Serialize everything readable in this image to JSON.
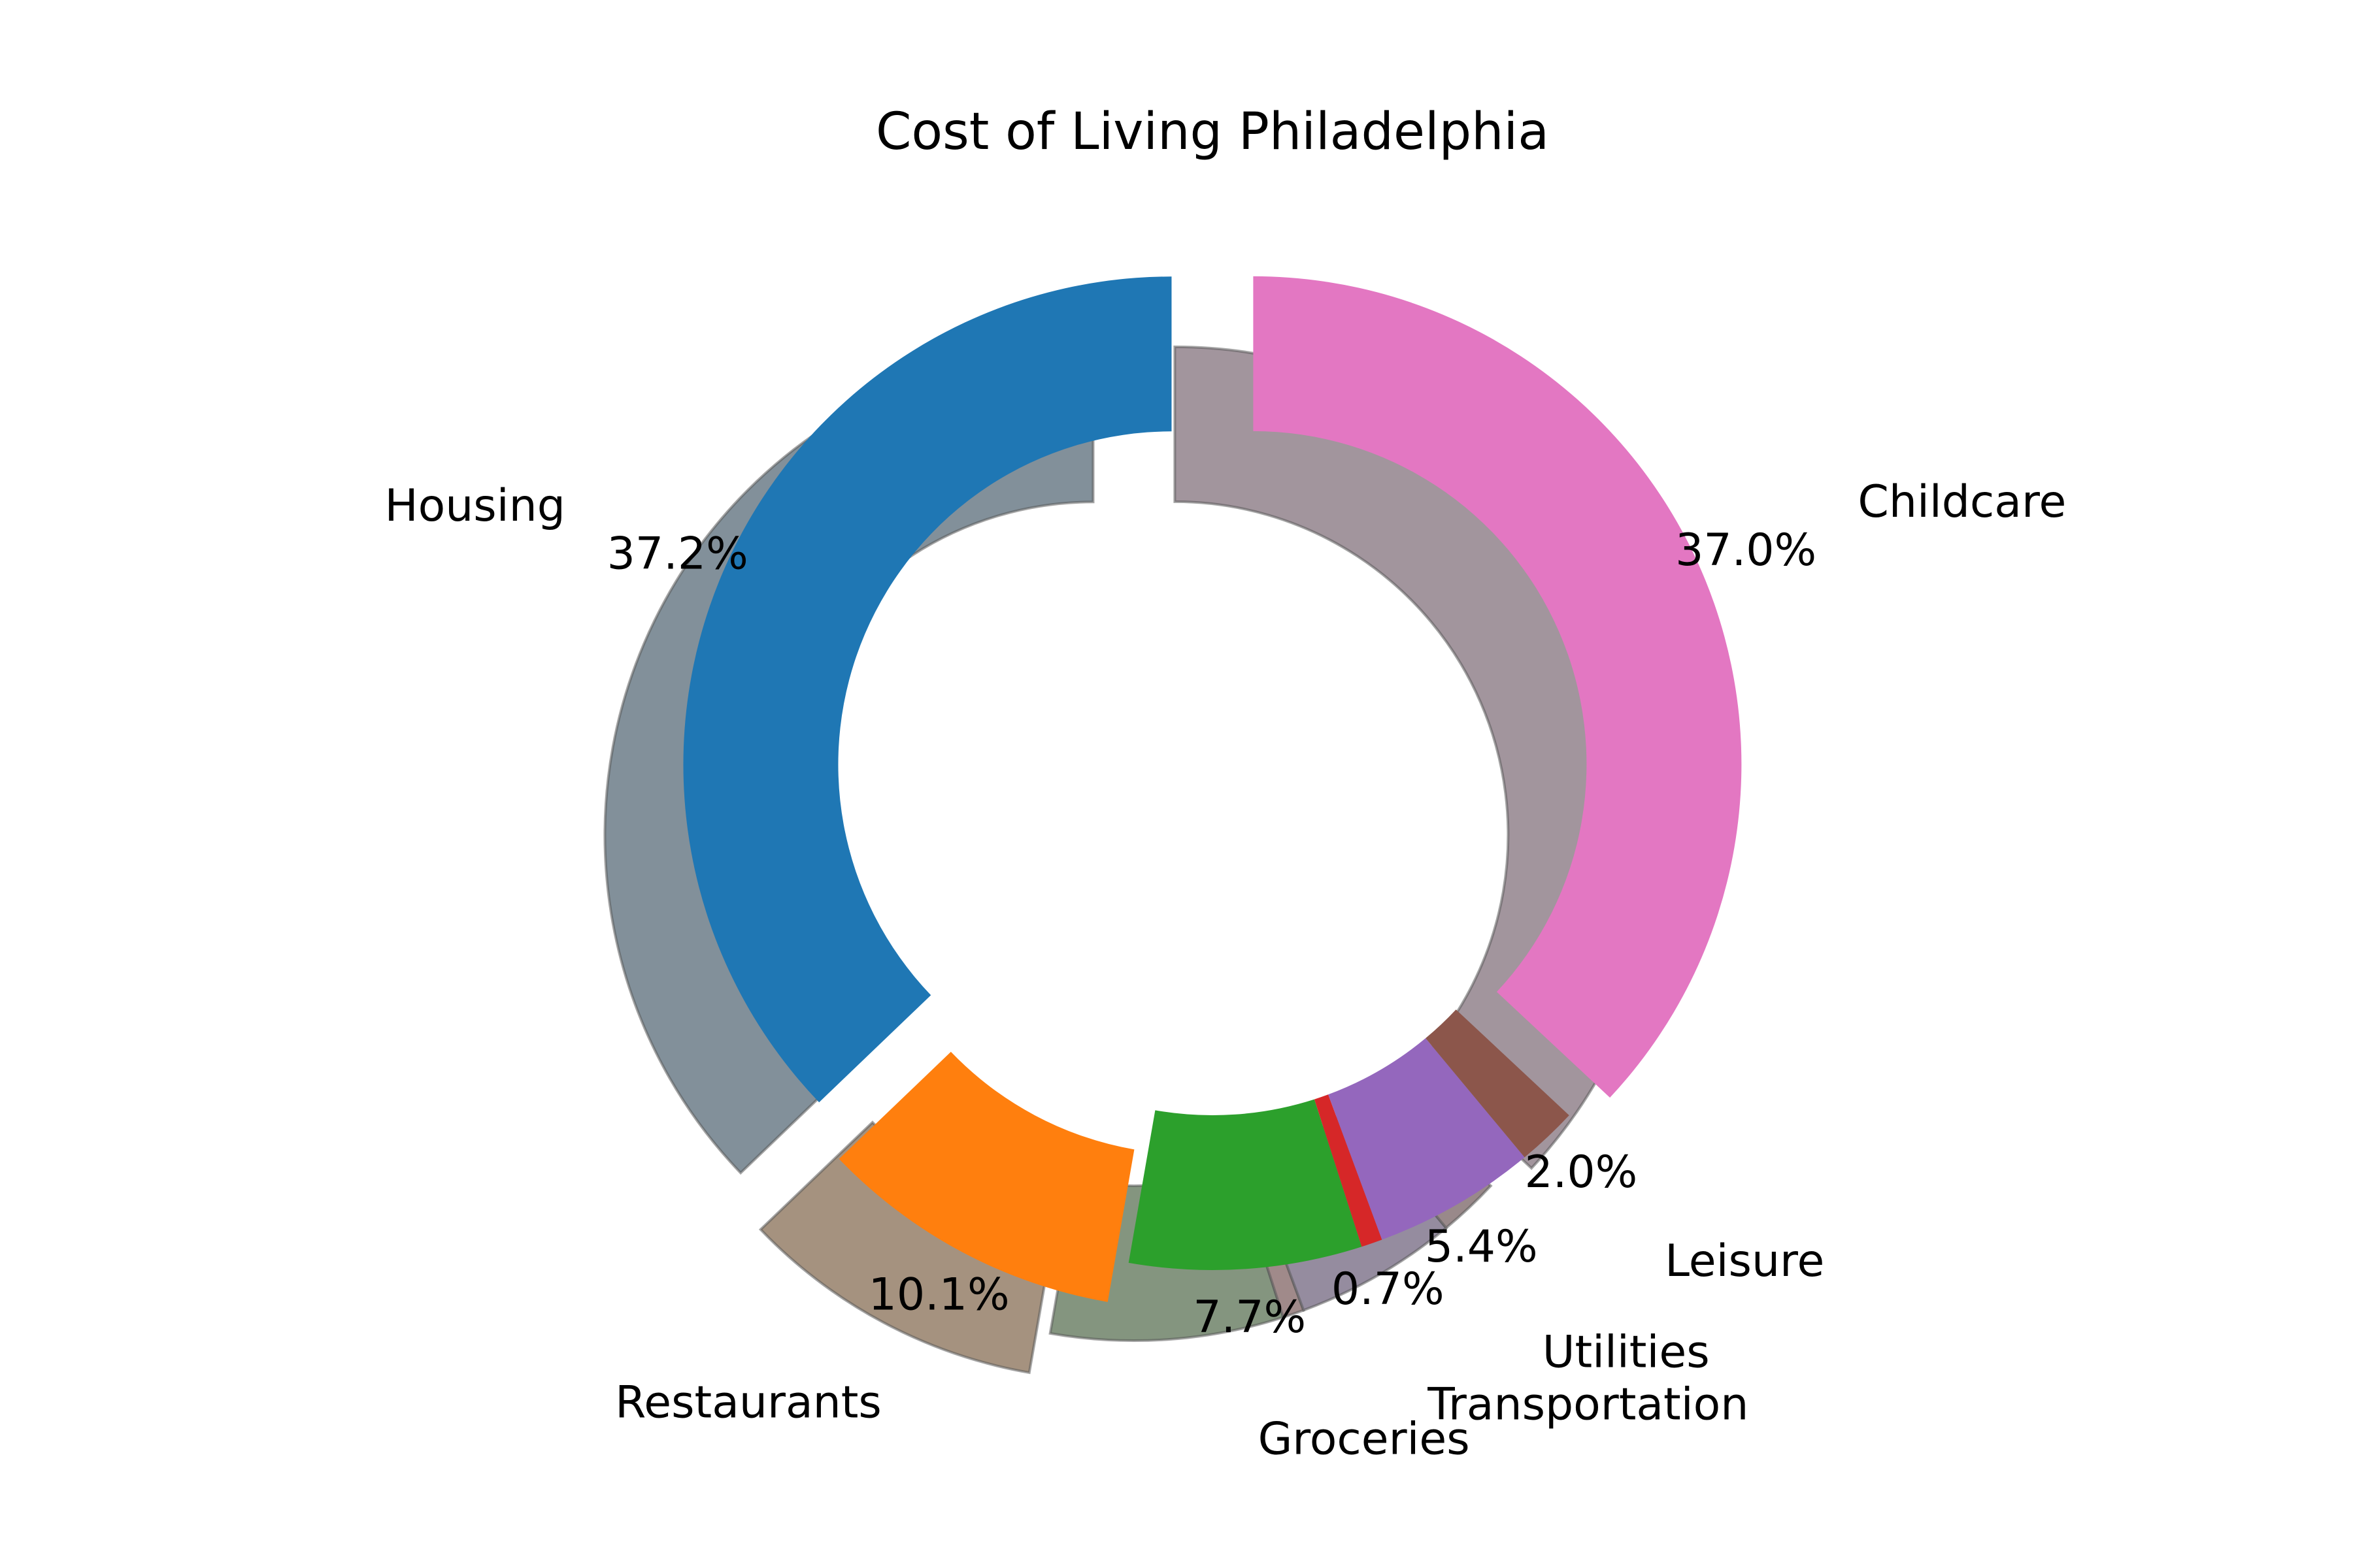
{
  "chart_data": {
    "type": "pie",
    "subtype": "donut",
    "title": "Cost of Living Philadelphia",
    "legend": "none",
    "slices": [
      {
        "label": "Housing",
        "value": 37.2,
        "pct_label": "37.2%",
        "color": "#1f77b4",
        "shadow_color": "#82909a",
        "exploded": true
      },
      {
        "label": "Restaurants",
        "value": 10.1,
        "pct_label": "10.1%",
        "color": "#ff7f0e",
        "shadow_color": "#a5927f",
        "exploded": true
      },
      {
        "label": "Groceries",
        "value": 7.7,
        "pct_label": "7.7%",
        "color": "#2ca02c",
        "shadow_color": "#84957f",
        "exploded": false
      },
      {
        "label": "Transportation",
        "value": 0.7,
        "pct_label": "0.7%",
        "color": "#d62728",
        "shadow_color": "#a08a8a",
        "exploded": false
      },
      {
        "label": "Utilities",
        "value": 5.4,
        "pct_label": "5.4%",
        "color": "#9467bd",
        "shadow_color": "#958c9f",
        "exploded": false
      },
      {
        "label": "Leisure",
        "value": 2.0,
        "pct_label": "2.0%",
        "color": "#8c564b",
        "shadow_color": "#99898a",
        "exploded": false
      },
      {
        "label": "Childcare",
        "value": 37.0,
        "pct_label": "37.0%",
        "color": "#e377c2",
        "shadow_color": "#a2959d",
        "exploded": true
      }
    ]
  }
}
